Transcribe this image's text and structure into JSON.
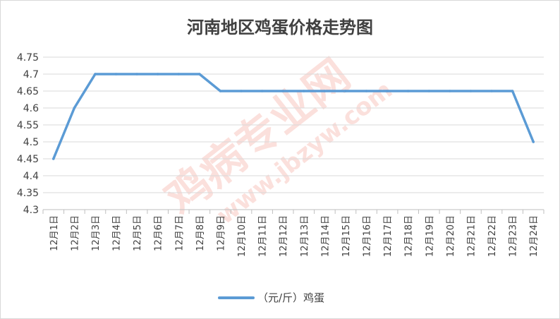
{
  "chart_data": {
    "type": "line",
    "title": "河南地区鸡蛋价格走势图",
    "categories": [
      "12月1日",
      "12月2日",
      "12月3日",
      "12月4日",
      "12月5日",
      "12月6日",
      "12月7日",
      "12月8日",
      "12月9日",
      "12月10日",
      "12月11日",
      "12月12日",
      "12月13日",
      "12月14日",
      "12月15日",
      "12月16日",
      "12月17日",
      "12月18日",
      "12月19日",
      "12月20日",
      "12月21日",
      "12月22日",
      "12月23日",
      "12月24日"
    ],
    "series": [
      {
        "name": "（元/斤）鸡蛋",
        "color": "#5b9bd5",
        "values": [
          4.45,
          4.6,
          4.7,
          4.7,
          4.7,
          4.7,
          4.7,
          4.7,
          4.65,
          4.65,
          4.65,
          4.65,
          4.65,
          4.65,
          4.65,
          4.65,
          4.65,
          4.65,
          4.65,
          4.65,
          4.65,
          4.65,
          4.65,
          4.5
        ]
      }
    ],
    "ylim": [
      4.3,
      4.75
    ],
    "yticks": [
      "4.3",
      "4.35",
      "4.4",
      "4.45",
      "4.5",
      "4.55",
      "4.6",
      "4.65",
      "4.7",
      "4.75"
    ],
    "grid": true,
    "legend_position": "bottom"
  },
  "watermark": {
    "text": "鸡病专业网",
    "url": "www.jbzyw.com"
  }
}
